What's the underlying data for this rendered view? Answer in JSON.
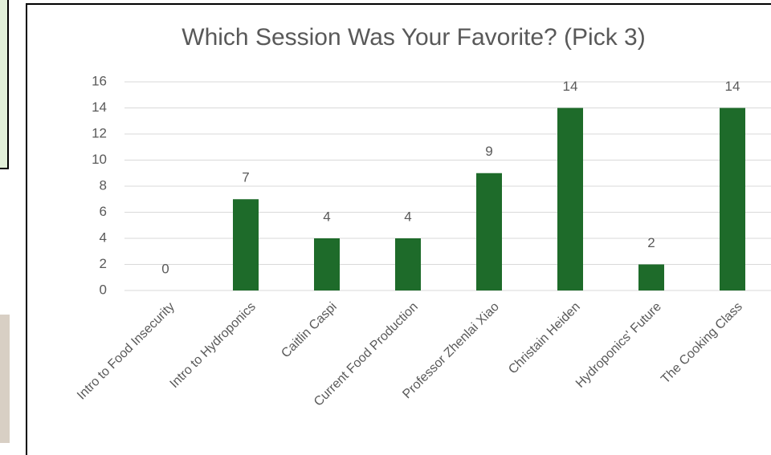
{
  "chart_data": {
    "type": "bar",
    "title": "Which Session Was Your Favorite? (Pick 3)",
    "categories": [
      "Intro to Food Insecurity",
      "Intro to Hydroponics",
      "Caitlin Caspi",
      "Current Food Production",
      "Professor Zhenlai Xiao",
      "Christain Heiden",
      "Hydroponics' Future",
      "The Cooking Class"
    ],
    "values": [
      0,
      7,
      4,
      4,
      9,
      14,
      2,
      14
    ],
    "color": "#1e6b2a",
    "ylim": [
      0,
      16
    ],
    "yticks": [
      0,
      2,
      4,
      6,
      8,
      10,
      12,
      14,
      16
    ],
    "grid": true
  }
}
